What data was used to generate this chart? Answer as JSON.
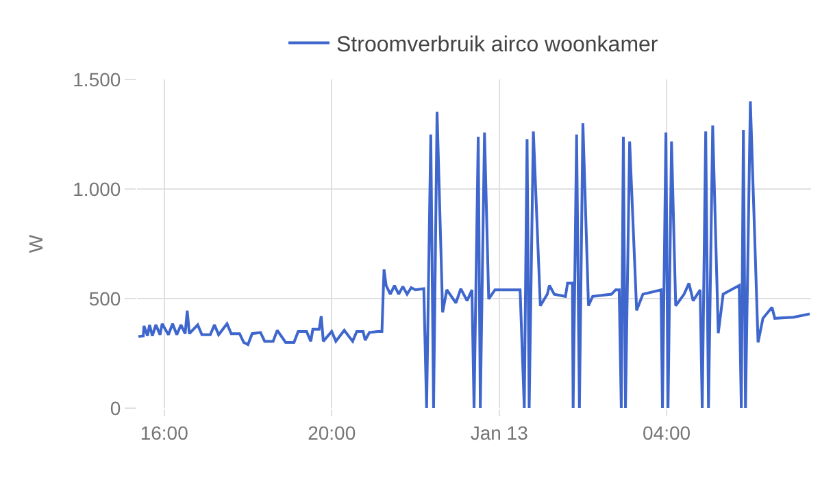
{
  "chart_data": {
    "type": "line",
    "ylabel": "W",
    "x": [
      "--01-12T15:23",
      "--01-12T15:30",
      "--01-12T15:31",
      "--01-12T15:36",
      "--01-12T15:39",
      "--01-12T15:43",
      "--01-12T15:48",
      "--01-12T15:54",
      "--01-12T15:57",
      "--01-12T16:06",
      "--01-12T16:12",
      "--01-12T16:18",
      "--01-12T16:24",
      "--01-12T16:30",
      "--01-12T16:33",
      "--01-12T16:36",
      "--01-12T16:48",
      "--01-12T16:54",
      "--01-12T17:06",
      "--01-12T17:12",
      "--01-12T17:18",
      "--01-12T17:30",
      "--01-12T17:36",
      "--01-12T17:48",
      "--01-12T17:54",
      "--01-12T18:00",
      "--01-12T18:06",
      "--01-12T18:18",
      "--01-12T18:24",
      "--01-12T18:36",
      "--01-12T18:42",
      "--01-12T18:54",
      "--01-12T19:06",
      "--01-12T19:12",
      "--01-12T19:24",
      "--01-12T19:30",
      "--01-12T19:33",
      "--01-12T19:42",
      "--01-12T19:45",
      "--01-12T19:48",
      "--01-12T20:00",
      "--01-12T20:06",
      "--01-12T20:18",
      "--01-12T20:30",
      "--01-12T20:36",
      "--01-12T20:45",
      "--01-12T20:48",
      "--01-12T20:54",
      "--01-12T21:06",
      "--01-12T21:12",
      "--01-12T21:15",
      "--01-12T21:18",
      "--01-12T21:24",
      "--01-12T21:30",
      "--01-12T21:36",
      "--01-12T21:42",
      "--01-12T21:48",
      "--01-12T21:54",
      "--01-12T22:00",
      "--01-12T22:12",
      "--01-12T22:16",
      "--01-12T22:22",
      "--01-12T22:26",
      "--01-12T22:31",
      "--01-12T22:39",
      "--01-12T22:45",
      "--01-12T22:58",
      "--01-12T23:05",
      "--01-12T23:14",
      "--01-12T23:21",
      "--01-12T23:24",
      "--01-12T23:30",
      "--01-12T23:33",
      "--01-12T23:39",
      "--01-12T23:45",
      "--01-12T23:54",
      "--01-13T00:30",
      "--01-13T00:36",
      "--01-13T00:40",
      "--01-13T00:43",
      "--01-13T00:49",
      "--01-13T00:59",
      "--01-13T01:09",
      "--01-13T01:12",
      "--01-13T01:19",
      "--01-13T01:35",
      "--01-13T01:38",
      "--01-13T01:45",
      "--01-13T01:46",
      "--01-13T01:51",
      "--01-13T01:55",
      "--01-13T02:00",
      "--01-13T02:08",
      "--01-13T02:14",
      "--01-13T02:41",
      "--01-13T02:47",
      "--01-13T02:52",
      "--01-13T02:55",
      "--01-13T02:58",
      "--01-13T03:01",
      "--01-13T03:07",
      "--01-13T03:17",
      "--01-13T03:26",
      "--01-13T03:52",
      "--01-13T03:54",
      "--01-13T03:59",
      "--01-13T04:02",
      "--01-13T04:07",
      "--01-13T04:13",
      "--01-13T04:25",
      "--01-13T04:32",
      "--01-13T04:38",
      "--01-13T04:48",
      "--01-13T04:51",
      "--01-13T04:56",
      "--01-13T05:00",
      "--01-13T05:06",
      "--01-13T05:14",
      "--01-13T05:21",
      "--01-13T05:44",
      "--01-13T05:47",
      "--01-13T05:50",
      "--01-13T05:53",
      "--01-13T06:00",
      "--01-13T06:11",
      "--01-13T06:18",
      "--01-13T06:31",
      "--01-13T06:35",
      "--01-13T07:02",
      "--01-13T07:25"
    ],
    "series": [
      {
        "name": "Stroomverbruik airco woonkamer",
        "color": "#3e66cc",
        "values": [
          327,
          330,
          375,
          330,
          380,
          330,
          380,
          335,
          385,
          335,
          385,
          335,
          380,
          340,
          445,
          340,
          380,
          335,
          335,
          380,
          335,
          385,
          340,
          340,
          300,
          290,
          340,
          345,
          305,
          305,
          355,
          300,
          300,
          350,
          350,
          305,
          360,
          360,
          420,
          305,
          350,
          305,
          355,
          305,
          350,
          350,
          310,
          345,
          350,
          350,
          633,
          560,
          520,
          560,
          520,
          555,
          520,
          550,
          540,
          545,
          0,
          1248,
          0,
          1352,
          437,
          540,
          480,
          545,
          490,
          540,
          0,
          1238,
          0,
          1258,
          498,
          540,
          540,
          0,
          1227,
          0,
          1263,
          467,
          520,
          560,
          520,
          510,
          570,
          570,
          0,
          1248,
          0,
          1300,
          467,
          510,
          520,
          540,
          540,
          0,
          1238,
          0,
          1217,
          446,
          520,
          540,
          0,
          1258,
          0,
          1217,
          467,
          520,
          570,
          490,
          540,
          0,
          1263,
          0,
          1290,
          342,
          520,
          560,
          0,
          1269,
          0,
          1400,
          300,
          410,
          460,
          410,
          415,
          430
        ]
      }
    ],
    "xlim": [
      "--01-12T15:21",
      "--01-13T07:27"
    ],
    "xticks": [
      {
        "value": "--01-12T16:00",
        "label": "16:00"
      },
      {
        "value": "--01-12T20:00",
        "label": "20:00"
      },
      {
        "value": "--01-13T00:00",
        "label": "Jan 13"
      },
      {
        "value": "--01-13T04:00",
        "label": "04:00"
      }
    ],
    "ylim": [
      0,
      1500
    ],
    "yticks": [
      {
        "value": 0,
        "label": "0"
      },
      {
        "value": 500,
        "label": "500"
      },
      {
        "value": 1000,
        "label": "1.000"
      },
      {
        "value": 1500,
        "label": "1.500"
      }
    ],
    "grid": true,
    "legend": "top",
    "marker": "none",
    "line_style": "solid"
  }
}
